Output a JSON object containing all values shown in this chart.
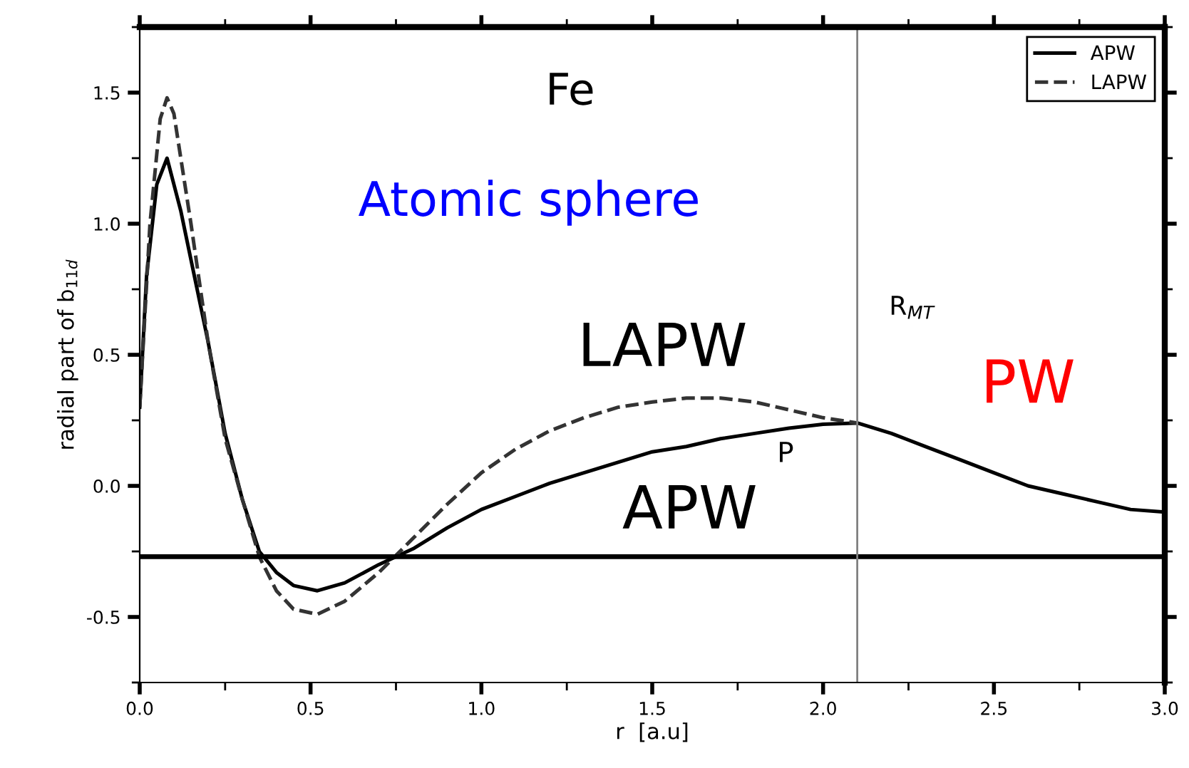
{
  "chart_data": {
    "type": "line",
    "xlabel": "r  [a.u]",
    "ylabel": "radial part of b$_{11d}$",
    "xlim": [
      0,
      3.0
    ],
    "ylim": [
      -0.75,
      1.75
    ],
    "xticks": [
      {
        "value": 0,
        "label": "0.0"
      },
      0.5,
      {
        "value": 1,
        "label": "1.0"
      },
      1.5,
      {
        "value": 2,
        "label": "2.0"
      },
      2.5,
      {
        "value": 3,
        "label": "3.0"
      }
    ],
    "yticks": [
      -0.5,
      {
        "value": 0,
        "label": "0.0"
      },
      0.5,
      {
        "value": 1,
        "label": "1.0"
      },
      1.5
    ],
    "legend": "top right",
    "grid": false,
    "marker": "none",
    "annotations": [
      "Fe",
      "Atomic sphere",
      "LAPW",
      "APW",
      "P",
      "R$_{MT}$",
      "PW"
    ],
    "ref_lines": [
      {
        "axis": "y",
        "value": -0.27,
        "color": "#000000",
        "line_style": "solid"
      },
      {
        "axis": "x",
        "value": 2.1,
        "color": "#808080",
        "line_style": "solid"
      }
    ],
    "series": [
      {
        "name": "APW",
        "color": "#000000",
        "line_style": "solid",
        "x": [
          0,
          0.02,
          0.05,
          0.08,
          0.12,
          0.2,
          0.25,
          0.3,
          0.35,
          0.4,
          0.45,
          0.52,
          0.6,
          0.7,
          0.8,
          0.9,
          1.0,
          1.1,
          1.2,
          1.3,
          1.4,
          1.5,
          1.6,
          1.7,
          1.8,
          1.9,
          2.0,
          2.1,
          2.2,
          2.3,
          2.4,
          2.5,
          2.6,
          2.7,
          2.8,
          2.9,
          3.0
        ],
        "values": [
          0.3,
          0.8,
          1.15,
          1.25,
          1.05,
          0.55,
          0.2,
          -0.05,
          -0.25,
          -0.33,
          -0.38,
          -0.4,
          -0.37,
          -0.3,
          -0.24,
          -0.16,
          -0.09,
          -0.04,
          0.01,
          0.05,
          0.09,
          0.13,
          0.15,
          0.18,
          0.2,
          0.22,
          0.235,
          0.24,
          0.2,
          0.15,
          0.1,
          0.05,
          0.0,
          -0.03,
          -0.06,
          -0.09,
          -0.1
        ]
      },
      {
        "name": "LAPW",
        "color": "#333333",
        "line_style": "dashed",
        "x": [
          0,
          0.03,
          0.06,
          0.08,
          0.1,
          0.15,
          0.2,
          0.25,
          0.3,
          0.35,
          0.4,
          0.45,
          0.52,
          0.6,
          0.7,
          0.8,
          0.9,
          1.0,
          1.1,
          1.2,
          1.3,
          1.4,
          1.5,
          1.6,
          1.7,
          1.8,
          1.9,
          2.0,
          2.1
        ],
        "values": [
          0.3,
          1.0,
          1.4,
          1.48,
          1.42,
          1.0,
          0.55,
          0.18,
          -0.05,
          -0.27,
          -0.4,
          -0.47,
          -0.49,
          -0.44,
          -0.33,
          -0.2,
          -0.07,
          0.05,
          0.14,
          0.21,
          0.26,
          0.3,
          0.32,
          0.335,
          0.335,
          0.32,
          0.29,
          0.26,
          0.24
        ]
      }
    ]
  }
}
